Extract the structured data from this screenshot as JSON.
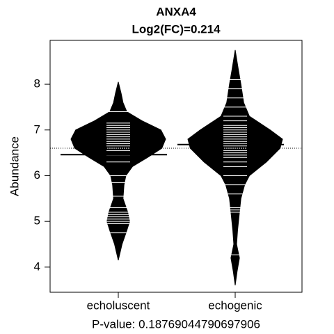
{
  "chart_data": {
    "type": "beanplot",
    "title": "ANXA4",
    "subtitle": "Log2(FC)=0.214",
    "ylabel": "Abundance",
    "xlabel": "P-value: 0.18769044790697906",
    "categories": [
      "echoluscent",
      "echogenic"
    ],
    "ylim": [
      3.45,
      8.96
    ],
    "yticks": [
      4,
      5,
      6,
      7,
      8
    ],
    "overall_mean": 6.6,
    "color": "#000000",
    "line_color": "#ffffff",
    "series": [
      {
        "name": "echoluscent",
        "density_y": [
          4.15,
          4.5,
          4.8,
          5.0,
          5.2,
          5.5,
          5.8,
          6.0,
          6.2,
          6.4,
          6.6,
          6.8,
          7.0,
          7.2,
          7.4,
          7.6,
          7.8,
          8.05
        ],
        "density": [
          0.0,
          0.08,
          0.18,
          0.24,
          0.2,
          0.1,
          0.12,
          0.16,
          0.3,
          0.62,
          0.92,
          1.0,
          0.9,
          0.5,
          0.18,
          0.1,
          0.06,
          0.0
        ],
        "mean": 6.46,
        "observations": [
          4.75,
          4.95,
          5.0,
          5.05,
          5.1,
          5.15,
          5.2,
          5.3,
          5.55,
          5.85,
          6.0,
          6.3,
          6.45,
          6.55,
          6.6,
          6.65,
          6.7,
          6.75,
          6.8,
          6.85,
          6.9,
          6.95,
          7.0,
          7.05,
          7.1,
          7.15,
          7.4
        ]
      },
      {
        "name": "echogenic",
        "density_y": [
          3.6,
          3.9,
          4.2,
          4.5,
          4.8,
          5.2,
          5.5,
          5.8,
          6.0,
          6.3,
          6.6,
          6.8,
          7.0,
          7.3,
          7.6,
          8.0,
          8.3,
          8.75
        ],
        "density": [
          0.0,
          0.04,
          0.09,
          0.03,
          0.05,
          0.09,
          0.12,
          0.2,
          0.3,
          0.66,
          0.95,
          1.0,
          0.74,
          0.3,
          0.18,
          0.12,
          0.07,
          0.0
        ],
        "mean": 6.68,
        "observations": [
          4.27,
          5.2,
          5.25,
          5.3,
          5.6,
          5.8,
          6.0,
          6.2,
          6.3,
          6.4,
          6.45,
          6.5,
          6.55,
          6.6,
          6.65,
          6.7,
          6.75,
          6.8,
          6.85,
          6.9,
          6.95,
          7.0,
          7.05,
          7.1,
          7.2,
          7.3,
          7.5,
          7.7,
          7.9,
          8.1
        ]
      }
    ]
  }
}
